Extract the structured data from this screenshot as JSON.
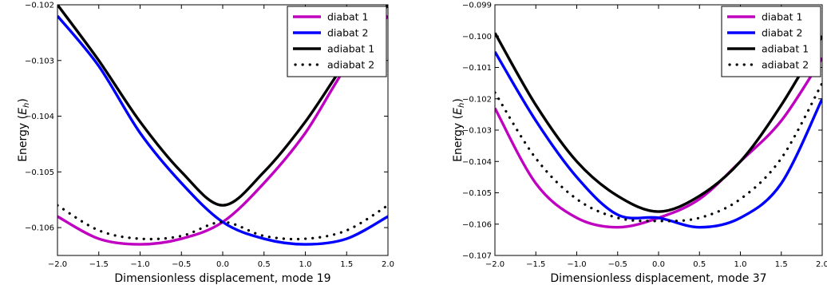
{
  "chart_data": [
    {
      "type": "line",
      "title": "",
      "xlabel": "Dimensionless displacement, mode 19",
      "ylabel": "Energy",
      "ylabel_unit_base": "E",
      "ylabel_unit_sub": "h",
      "xlim": [
        -2.0,
        2.0
      ],
      "ylim": [
        -0.1065,
        -0.102
      ],
      "xticks": [
        -2.0,
        -1.5,
        -1.0,
        -0.5,
        0.0,
        0.5,
        1.0,
        1.5,
        2.0
      ],
      "xtick_labels": [
        "−2.0",
        "−1.5",
        "−1.0",
        "−0.5",
        "0.0",
        "0.5",
        "1.0",
        "1.5",
        "2.0"
      ],
      "yticks": [
        -0.106,
        -0.105,
        -0.104,
        -0.103,
        -0.102
      ],
      "ytick_labels": [
        "−0.106",
        "−0.105",
        "−0.104",
        "−0.103",
        "−0.102"
      ],
      "grid": false,
      "legend": "top-right",
      "x": [
        -2.0,
        -1.5,
        -1.0,
        -0.5,
        0.0,
        0.5,
        1.0,
        1.5,
        2.0
      ],
      "series": [
        {
          "name": "diabat 1",
          "color": "#c000c0",
          "style": "solid",
          "values": [
            -0.1058,
            -0.1062,
            -0.1063,
            -0.1062,
            -0.1059,
            -0.1052,
            -0.1043,
            -0.1031,
            -0.1022
          ]
        },
        {
          "name": "diabat 2",
          "color": "#0000ff",
          "style": "solid",
          "values": [
            -0.1022,
            -0.1031,
            -0.1043,
            -0.1052,
            -0.1059,
            -0.1062,
            -0.1063,
            -0.1062,
            -0.1058
          ]
        },
        {
          "name": "adiabat 1",
          "color": "#000000",
          "style": "solid",
          "values": [
            -0.102,
            -0.103,
            -0.1041,
            -0.105,
            -0.1056,
            -0.105,
            -0.1041,
            -0.103,
            -0.102
          ]
        },
        {
          "name": "adiabat 2",
          "color": "#000000",
          "style": "dotted",
          "values": [
            -0.1056,
            -0.10605,
            -0.1062,
            -0.10615,
            -0.1059,
            -0.10615,
            -0.1062,
            -0.10605,
            -0.1056
          ]
        }
      ]
    },
    {
      "type": "line",
      "title": "",
      "xlabel": "Dimensionless displacement, mode 37",
      "ylabel": "Energy",
      "ylabel_unit_base": "E",
      "ylabel_unit_sub": "h",
      "xlim": [
        -2.0,
        2.0
      ],
      "ylim": [
        -0.107,
        -0.099
      ],
      "xticks": [
        -2.0,
        -1.5,
        -1.0,
        -0.5,
        0.0,
        0.5,
        1.0,
        1.5,
        2.0
      ],
      "xtick_labels": [
        "−2.0",
        "−1.5",
        "−1.0",
        "−0.5",
        "0.0",
        "0.5",
        "1.0",
        "1.5",
        "2.0"
      ],
      "yticks": [
        -0.107,
        -0.106,
        -0.105,
        -0.104,
        -0.103,
        -0.102,
        -0.101,
        -0.1,
        -0.099
      ],
      "ytick_labels": [
        "−0.107",
        "−0.106",
        "−0.105",
        "−0.104",
        "−0.103",
        "−0.102",
        "−0.101",
        "−0.100",
        "−0.099"
      ],
      "grid": false,
      "legend": "top-right",
      "x": [
        -2.0,
        -1.5,
        -1.0,
        -0.5,
        0.0,
        0.5,
        1.0,
        1.5,
        2.0
      ],
      "series": [
        {
          "name": "diabat 1",
          "color": "#c000c0",
          "style": "solid",
          "values": [
            -0.1023,
            -0.1047,
            -0.1058,
            -0.1061,
            -0.1058,
            -0.1052,
            -0.104,
            -0.1027,
            -0.1007
          ]
        },
        {
          "name": "diabat 2",
          "color": "#0000ff",
          "style": "solid",
          "values": [
            -0.1005,
            -0.1027,
            -0.1045,
            -0.1057,
            -0.1058,
            -0.1061,
            -0.1058,
            -0.1047,
            -0.102
          ]
        },
        {
          "name": "adiabat 1",
          "color": "#000000",
          "style": "solid",
          "values": [
            -0.0999,
            -0.1022,
            -0.104,
            -0.1051,
            -0.1056,
            -0.1051,
            -0.104,
            -0.1022,
            -0.1
          ]
        },
        {
          "name": "adiabat 2",
          "color": "#000000",
          "style": "dotted",
          "values": [
            -0.1018,
            -0.1039,
            -0.1052,
            -0.1058,
            -0.1059,
            -0.1058,
            -0.1052,
            -0.1039,
            -0.1015
          ]
        }
      ]
    }
  ]
}
